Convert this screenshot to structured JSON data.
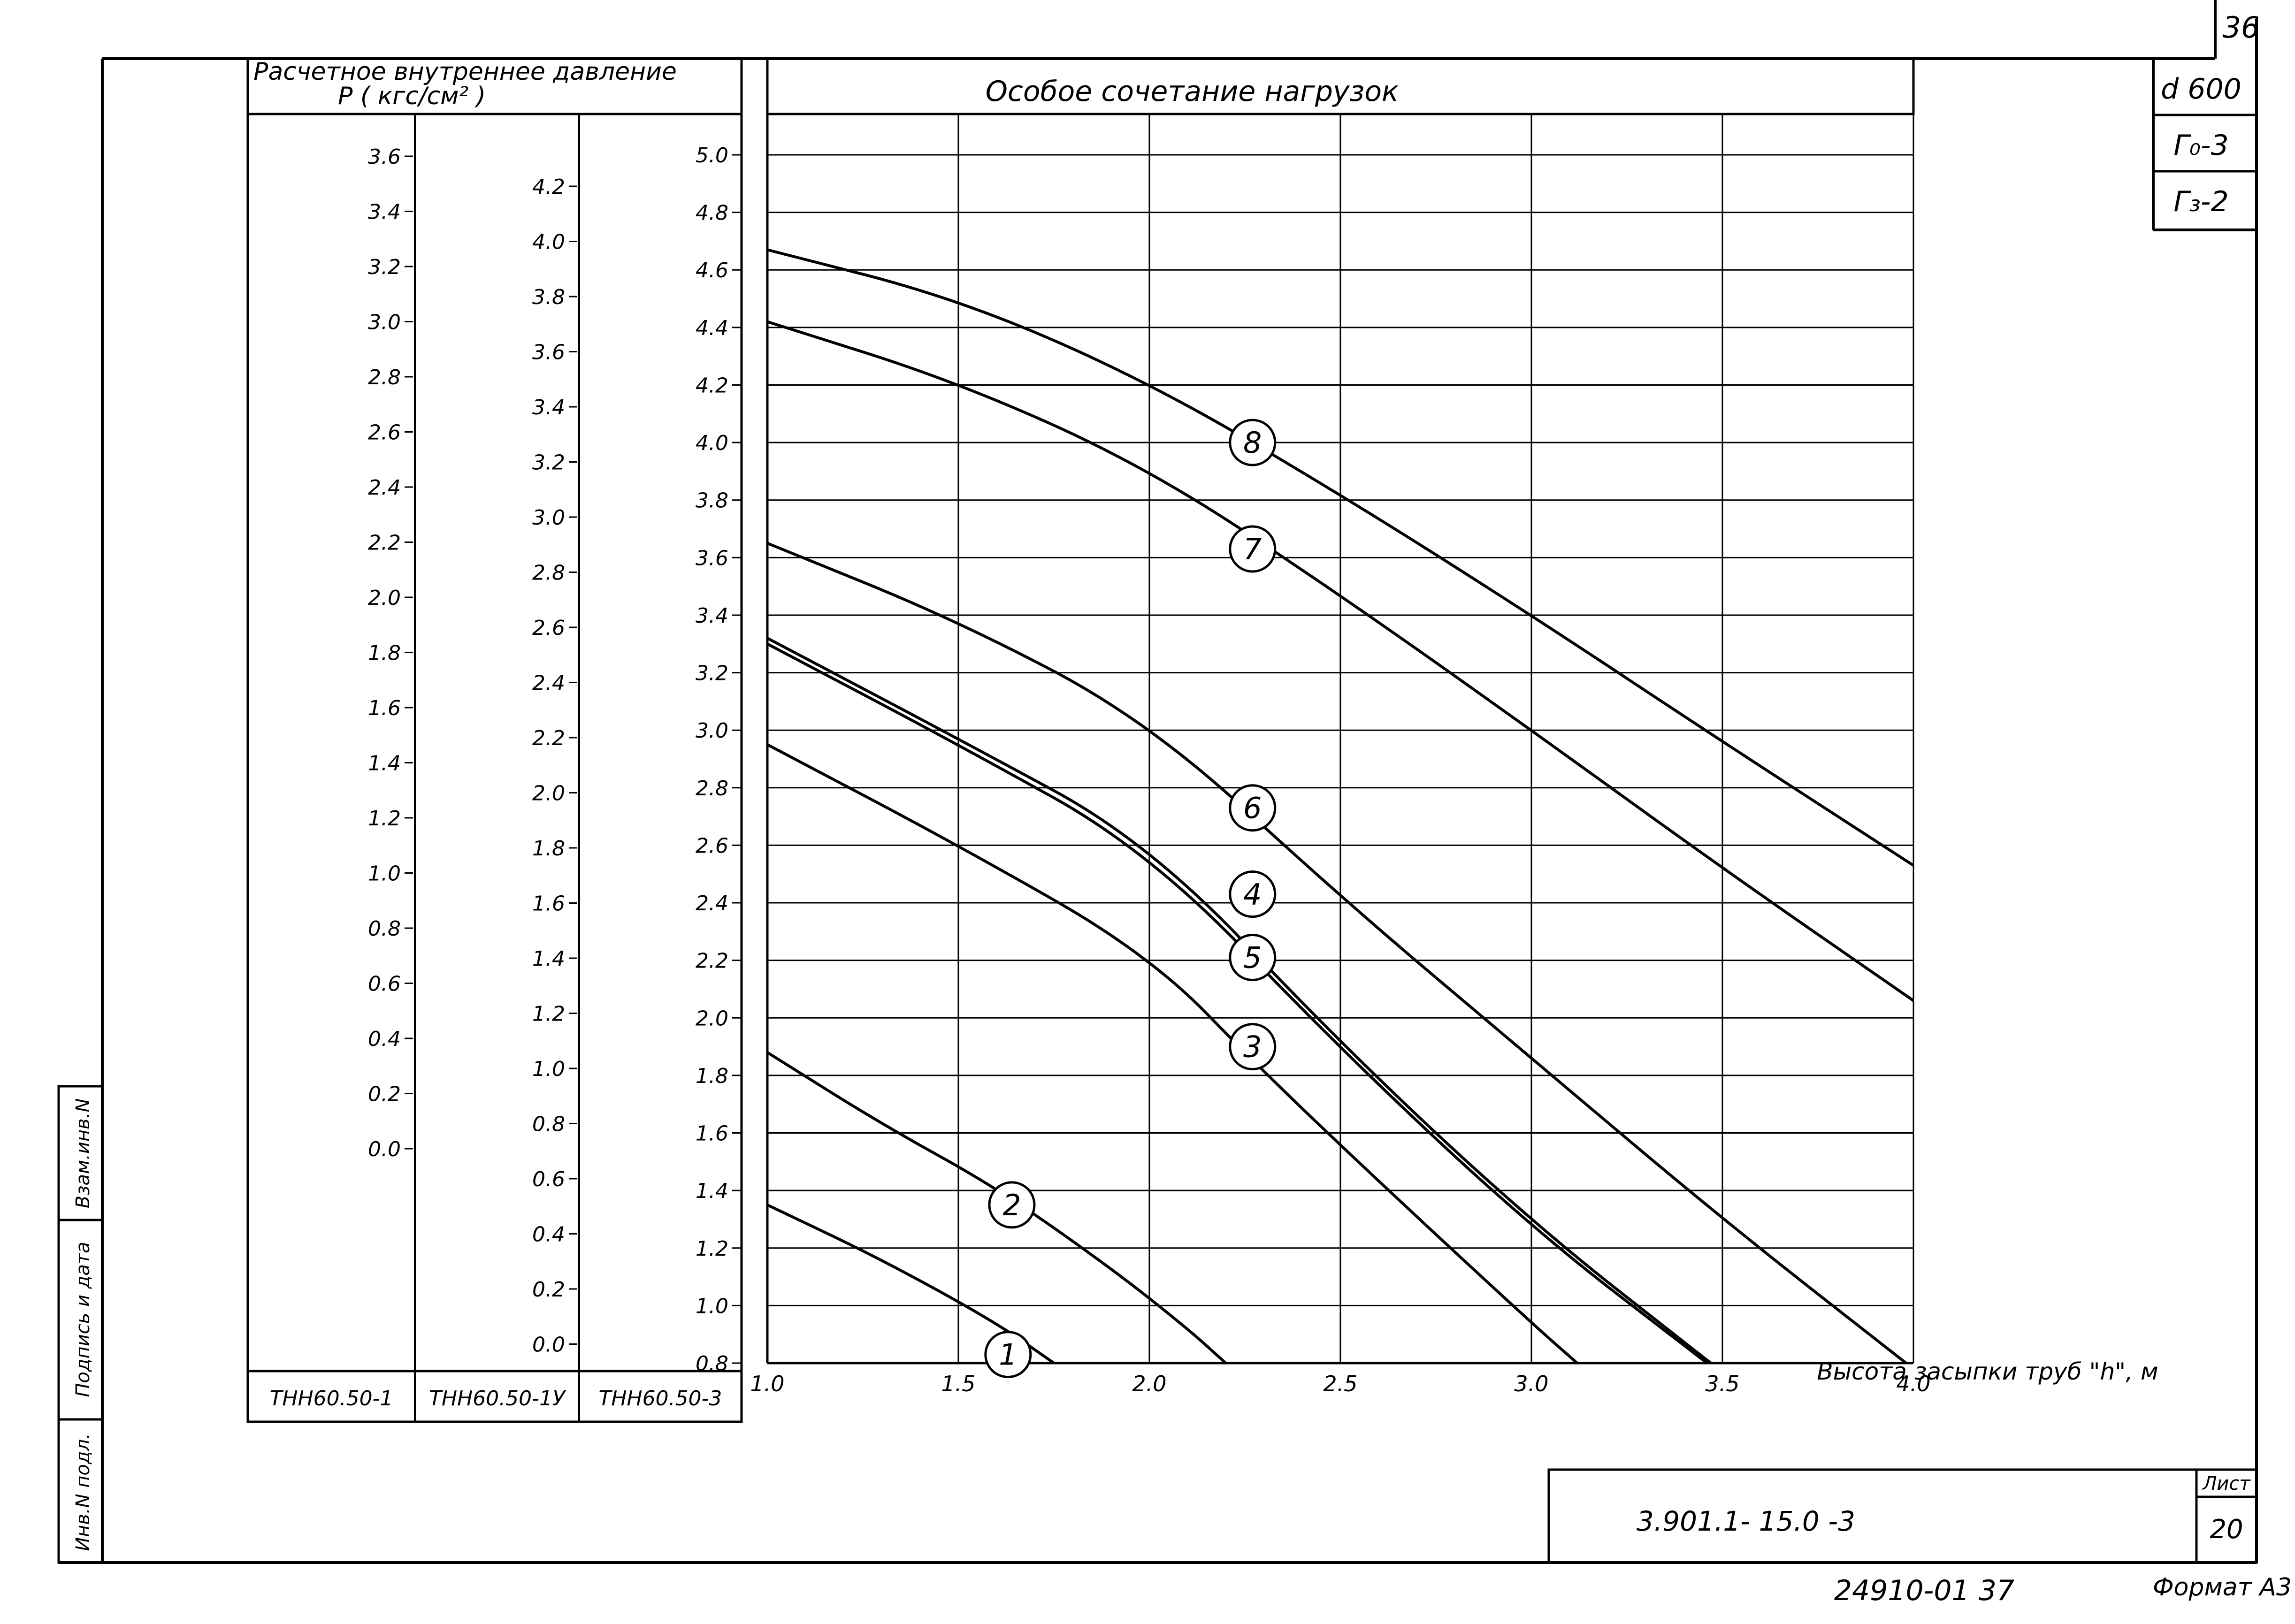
{
  "sheet": {
    "page_number_top": "36",
    "sheet_label": "Лист",
    "sheet_number": "20",
    "document_code": "3.901.1- 15.0 -3",
    "archive_number": "24910-01 37",
    "format": "Формат А3",
    "spec": [
      "d 600",
      "Г₀-3",
      "Г₃-2"
    ],
    "side_labels": [
      "Инв.N подл.",
      "Подпись и дата",
      "Взам.инв.N"
    ]
  },
  "pressure_panel": {
    "title_line1": "Расчетное внутреннее давление",
    "title_line2": "P ( кгс/см² )",
    "columns": [
      {
        "name": "ТНН60.50-1",
        "ticks": [
          {
            "v": 3.6,
            "label": "3.6"
          },
          {
            "v": 3.4,
            "label": "3.4"
          },
          {
            "v": 3.2,
            "label": "3.2"
          },
          {
            "v": 3.0,
            "label": "3.0"
          },
          {
            "v": 2.8,
            "label": "2.8"
          },
          {
            "v": 2.6,
            "label": "2.6"
          },
          {
            "v": 2.4,
            "label": "2.4"
          },
          {
            "v": 2.2,
            "label": "2.2"
          },
          {
            "v": 2.0,
            "label": "2.0"
          },
          {
            "v": 1.8,
            "label": "1.8"
          },
          {
            "v": 1.6,
            "label": "1.6"
          },
          {
            "v": 1.4,
            "label": "1.4"
          },
          {
            "v": 1.2,
            "label": "1.2"
          },
          {
            "v": 1.0,
            "label": "1.0"
          },
          {
            "v": 0.8,
            "label": "0.8"
          },
          {
            "v": 0.6,
            "label": "0.6"
          },
          {
            "v": 0.4,
            "label": "0.4"
          },
          {
            "v": 0.2,
            "label": "0.2"
          },
          {
            "v": 0.0,
            "label": "0.0"
          }
        ]
      },
      {
        "name": "ТНН60.50-1У",
        "ticks": [
          {
            "v": 4.2,
            "label": "4.2"
          },
          {
            "v": 4.0,
            "label": "4.0"
          },
          {
            "v": 3.8,
            "label": "3.8"
          },
          {
            "v": 3.6,
            "label": "3.6"
          },
          {
            "v": 3.4,
            "label": "3.4"
          },
          {
            "v": 3.2,
            "label": "3.2"
          },
          {
            "v": 3.0,
            "label": "3.0"
          },
          {
            "v": 2.8,
            "label": "2.8"
          },
          {
            "v": 2.6,
            "label": "2.6"
          },
          {
            "v": 2.4,
            "label": "2.4"
          },
          {
            "v": 2.2,
            "label": "2.2"
          },
          {
            "v": 2.0,
            "label": "2.0"
          },
          {
            "v": 1.8,
            "label": "1.8"
          },
          {
            "v": 1.6,
            "label": "1.6"
          },
          {
            "v": 1.4,
            "label": "1.4"
          },
          {
            "v": 1.2,
            "label": "1.2"
          },
          {
            "v": 1.0,
            "label": "1.0"
          },
          {
            "v": 0.8,
            "label": "0.8"
          },
          {
            "v": 0.6,
            "label": "0.6"
          },
          {
            "v": 0.4,
            "label": "0.4"
          },
          {
            "v": 0.2,
            "label": "0.2"
          },
          {
            "v": 0.0,
            "label": "0.0"
          }
        ]
      },
      {
        "name": "ТНН60.50-3",
        "ticks": [
          {
            "v": 5.0,
            "label": "5.0"
          },
          {
            "v": 4.8,
            "label": "4.8"
          },
          {
            "v": 4.6,
            "label": "4.6"
          },
          {
            "v": 4.4,
            "label": "4.4"
          },
          {
            "v": 4.2,
            "label": "4.2"
          },
          {
            "v": 4.0,
            "label": "4.0"
          },
          {
            "v": 3.8,
            "label": "3.8"
          },
          {
            "v": 3.6,
            "label": "3.6"
          },
          {
            "v": 3.4,
            "label": "3.4"
          },
          {
            "v": 3.2,
            "label": "3.2"
          },
          {
            "v": 3.0,
            "label": "3.0"
          },
          {
            "v": 2.8,
            "label": "2.8"
          },
          {
            "v": 2.6,
            "label": "2.6"
          },
          {
            "v": 2.4,
            "label": "2.4"
          },
          {
            "v": 2.2,
            "label": "2.2"
          },
          {
            "v": 2.0,
            "label": "2.0"
          },
          {
            "v": 1.8,
            "label": "1.8"
          },
          {
            "v": 1.6,
            "label": "1.6"
          },
          {
            "v": 1.4,
            "label": "1.4"
          },
          {
            "v": 1.2,
            "label": "1.2"
          },
          {
            "v": 1.0,
            "label": "1.0"
          },
          {
            "v": 0.8,
            "label": "0.8"
          }
        ]
      }
    ]
  },
  "chart_data": {
    "type": "line",
    "title": "Особое сочетание нагрузок",
    "xlabel": "Высота засыпки труб \"h\", м",
    "ylabel": "Расчетное внутреннее давление P (кгс/см²)",
    "xlim": [
      1.0,
      4.0
    ],
    "ylim": [
      0.8,
      5.0
    ],
    "x_ticks": [
      {
        "v": 1.0,
        "label": "1.0"
      },
      {
        "v": 1.5,
        "label": "1.5"
      },
      {
        "v": 2.0,
        "label": "2.0"
      },
      {
        "v": 2.5,
        "label": "2.5"
      },
      {
        "v": 3.0,
        "label": "3.0"
      },
      {
        "v": 3.5,
        "label": "3.5"
      },
      {
        "v": 4.0,
        "label": "4.0"
      }
    ],
    "grid": true,
    "series": [
      {
        "name": "1",
        "label_at": [
          1.63,
          0.83
        ],
        "points": [
          [
            1.0,
            1.35
          ],
          [
            1.3,
            1.16
          ],
          [
            1.6,
            0.94
          ],
          [
            1.75,
            0.8
          ]
        ]
      },
      {
        "name": "2",
        "label_at": [
          1.64,
          1.35
        ],
        "points": [
          [
            1.0,
            1.88
          ],
          [
            1.3,
            1.63
          ],
          [
            1.6,
            1.41
          ],
          [
            1.9,
            1.13
          ],
          [
            2.1,
            0.92
          ],
          [
            2.2,
            0.8
          ]
        ]
      },
      {
        "name": "3",
        "label_at": [
          2.27,
          1.9
        ],
        "points": [
          [
            1.0,
            2.95
          ],
          [
            1.5,
            2.6
          ],
          [
            2.0,
            2.22
          ],
          [
            2.3,
            1.81
          ],
          [
            2.65,
            1.37
          ],
          [
            3.0,
            0.94
          ],
          [
            3.12,
            0.8
          ]
        ]
      },
      {
        "name": "4",
        "label_at": [
          2.27,
          2.43
        ],
        "points": [
          [
            1.0,
            3.32
          ],
          [
            1.5,
            2.97
          ],
          [
            2.0,
            2.61
          ],
          [
            2.5,
            1.91
          ],
          [
            3.0,
            1.29
          ],
          [
            3.45,
            0.82
          ],
          [
            3.47,
            0.8
          ]
        ]
      },
      {
        "name": "5",
        "label_at": [
          2.27,
          2.21
        ],
        "points": [
          [
            1.0,
            3.3
          ],
          [
            1.5,
            2.95
          ],
          [
            2.0,
            2.58
          ],
          [
            2.5,
            1.89
          ],
          [
            3.0,
            1.27
          ],
          [
            3.43,
            0.83
          ],
          [
            3.46,
            0.8
          ]
        ]
      },
      {
        "name": "6",
        "label_at": [
          2.27,
          2.73
        ],
        "points": [
          [
            1.0,
            3.65
          ],
          [
            1.5,
            3.38
          ],
          [
            2.0,
            3.03
          ],
          [
            2.5,
            2.42
          ],
          [
            3.0,
            1.86
          ],
          [
            3.5,
            1.3
          ],
          [
            4.0,
            0.78
          ]
        ]
      },
      {
        "name": "7",
        "label_at": [
          2.27,
          3.63
        ],
        "points": [
          [
            1.0,
            4.42
          ],
          [
            1.5,
            4.21
          ],
          [
            2.0,
            3.91
          ],
          [
            2.5,
            3.47
          ],
          [
            3.0,
            3.0
          ],
          [
            3.5,
            2.52
          ],
          [
            4.0,
            2.06
          ]
        ]
      },
      {
        "name": "8",
        "label_at": [
          2.27,
          4.0
        ],
        "points": [
          [
            1.0,
            4.67
          ],
          [
            1.5,
            4.5
          ],
          [
            2.0,
            4.21
          ],
          [
            2.5,
            3.82
          ],
          [
            3.0,
            3.4
          ],
          [
            3.5,
            2.96
          ],
          [
            4.0,
            2.53
          ]
        ]
      }
    ]
  }
}
